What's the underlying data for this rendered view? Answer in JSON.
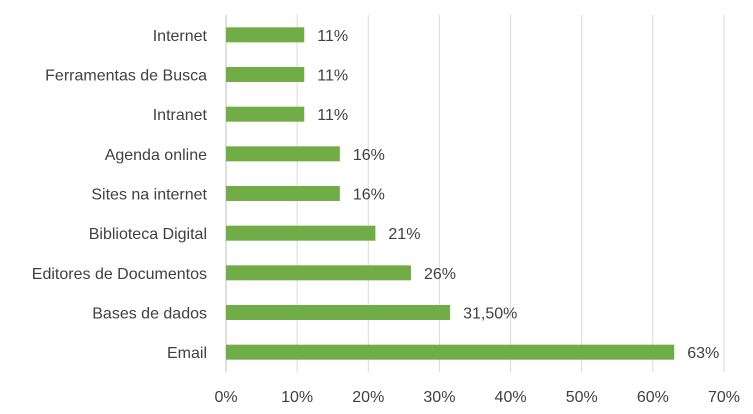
{
  "chart_data": {
    "type": "bar",
    "orientation": "horizontal",
    "categories": [
      "Internet",
      "Ferramentas de Busca",
      "Intranet",
      "Agenda online",
      "Sites na internet",
      "Biblioteca Digital",
      "Editores de Documentos",
      "Bases de dados",
      "Email"
    ],
    "values": [
      11,
      11,
      11,
      16,
      16,
      21,
      26,
      31.5,
      63
    ],
    "data_labels": [
      "11%",
      "11%",
      "11%",
      "16%",
      "16%",
      "21%",
      "26%",
      "31,50%",
      "63%"
    ],
    "x_ticks": [
      0,
      10,
      20,
      30,
      40,
      50,
      60,
      70
    ],
    "x_tick_labels": [
      "0%",
      "10%",
      "20%",
      "30%",
      "40%",
      "50%",
      "60%",
      "70%"
    ],
    "xlim": [
      0,
      70
    ],
    "title": "",
    "xlabel": "",
    "ylabel": "",
    "grid": true,
    "legend": "none",
    "bar_color": "#70ad47"
  }
}
